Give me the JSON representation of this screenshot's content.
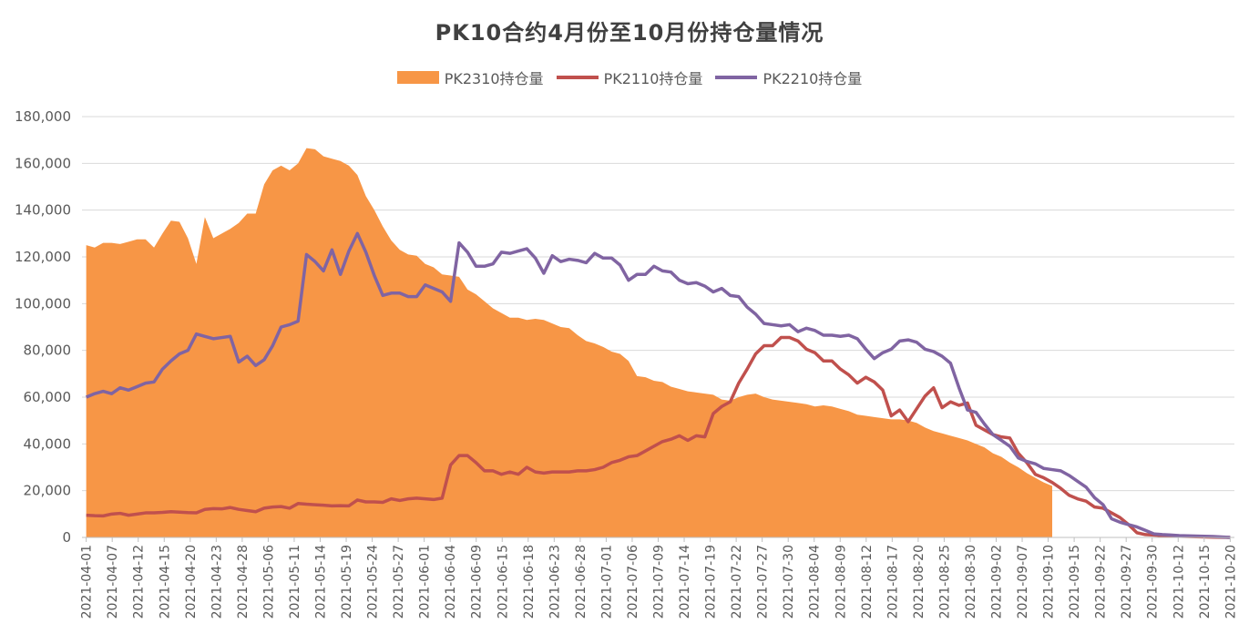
{
  "chart_data": {
    "type": "area",
    "title": "PK10合约4月份至10月份持仓量情况",
    "ylim": [
      0,
      180000
    ],
    "yticks": [
      0,
      20000,
      40000,
      60000,
      80000,
      100000,
      120000,
      140000,
      160000,
      180000
    ],
    "ytick_labels": [
      "0",
      "20,000",
      "40,000",
      "60,000",
      "80,000",
      "100,000",
      "120,000",
      "140,000",
      "160,000",
      "180,000"
    ],
    "grid": true,
    "legend_position": "top",
    "xtick_labels": [
      "2021-04-01",
      "2021-04-07",
      "2021-04-12",
      "2021-04-15",
      "2021-04-20",
      "2021-04-23",
      "2021-04-28",
      "2021-05-06",
      "2021-05-11",
      "2021-05-14",
      "2021-05-19",
      "2021-05-24",
      "2021-05-27",
      "2021-06-01",
      "2021-06-04",
      "2021-06-09",
      "2021-06-15",
      "2021-06-18",
      "2021-06-23",
      "2021-06-28",
      "2021-07-01",
      "2021-07-06",
      "2021-07-09",
      "2021-07-14",
      "2021-07-19",
      "2021-07-22",
      "2021-07-27",
      "2021-07-30",
      "2021-08-04",
      "2021-08-09",
      "2021-08-12",
      "2021-08-17",
      "2021-08-20",
      "2021-08-25",
      "2021-08-30",
      "2021-09-02",
      "2021-09-07",
      "2021-09-10",
      "2021-09-15",
      "2021-09-22",
      "2021-09-27",
      "2021-09-30",
      "2021-10-12",
      "2021-10-15",
      "2021-10-20"
    ],
    "n_points": 136,
    "series": [
      {
        "name": "PK2310持仓量",
        "kind": "area",
        "color": "#F79646",
        "values": [
          125000,
          124000,
          126000,
          126000,
          125500,
          126500,
          127500,
          127500,
          124000,
          130000,
          135500,
          135000,
          128000,
          117000,
          137000,
          128000,
          130000,
          132000,
          134500,
          138500,
          138500,
          151000,
          157000,
          159000,
          157000,
          160000,
          166500,
          166000,
          163000,
          162000,
          161000,
          159000,
          155000,
          146000,
          140000,
          133000,
          127000,
          123000,
          121000,
          120500,
          117000,
          115500,
          112500,
          112000,
          111500,
          106000,
          104000,
          101000,
          98000,
          96000,
          94000,
          94000,
          93000,
          93500,
          93000,
          91500,
          90000,
          89500,
          86500,
          84000,
          83000,
          81500,
          79500,
          78500,
          75500,
          69000,
          68500,
          67000,
          66500,
          64500,
          63500,
          62500,
          62000,
          61500,
          61000,
          59000,
          58500,
          60000,
          61000,
          61500,
          60000,
          59000,
          58500,
          58000,
          57500,
          57000,
          56000,
          56500,
          56000,
          55000,
          54000,
          52500,
          52000,
          51500,
          51000,
          50500,
          50500,
          50000,
          49000,
          47000,
          45500,
          44500,
          43500,
          42500,
          41500,
          40000,
          38500,
          36000,
          34500,
          32000,
          30000,
          27500,
          25500,
          23500,
          22000,
          null,
          null,
          null,
          null,
          null,
          null,
          null,
          null,
          null,
          null,
          null,
          null,
          null,
          null,
          null,
          null,
          null,
          null,
          null,
          null,
          null
        ]
      },
      {
        "name": "PK2110持仓量",
        "kind": "line",
        "color": "#C0504D",
        "values": [
          9500,
          9300,
          9200,
          10000,
          10300,
          9500,
          10000,
          10500,
          10500,
          10700,
          11000,
          10800,
          10600,
          10500,
          12000,
          12300,
          12200,
          12800,
          12000,
          11500,
          11000,
          12500,
          13000,
          13200,
          12500,
          14500,
          14200,
          14000,
          13800,
          13500,
          13600,
          13500,
          16000,
          15200,
          15200,
          15000,
          16500,
          15800,
          16500,
          16800,
          16500,
          16200,
          16800,
          31000,
          35000,
          35000,
          32000,
          28500,
          28500,
          27000,
          28000,
          27000,
          30000,
          28000,
          27500,
          28000,
          28000,
          28000,
          28500,
          28500,
          29000,
          30000,
          32000,
          33000,
          34500,
          35000,
          37000,
          39000,
          41000,
          42000,
          43500,
          41500,
          43500,
          43000,
          53000,
          56000,
          58000,
          66000,
          72000,
          78500,
          82000,
          82000,
          85500,
          85500,
          84000,
          80500,
          79000,
          75500,
          75500,
          72000,
          69500,
          66000,
          68500,
          66500,
          63000,
          52000,
          54500,
          49500,
          55000,
          60500,
          64000,
          55500,
          58000,
          56500,
          57500,
          48000,
          46000,
          44000,
          43000,
          42500,
          36000,
          32000,
          27000,
          25500,
          23500,
          21000,
          18000,
          16500,
          15500,
          13000,
          12500,
          10500,
          8500,
          5500,
          2000,
          1200,
          1000,
          800,
          600,
          500,
          400,
          300,
          200,
          100,
          50,
          0
        ]
      },
      {
        "name": "PK2210持仓量",
        "kind": "line",
        "color": "#8064A2",
        "values": [
          60000,
          61500,
          62500,
          61500,
          64000,
          63000,
          64500,
          66000,
          66500,
          72000,
          75500,
          78500,
          80000,
          87000,
          86000,
          85000,
          85500,
          86000,
          75000,
          77500,
          73500,
          76000,
          82000,
          90000,
          91000,
          92500,
          121000,
          118000,
          114000,
          123000,
          112500,
          122500,
          130000,
          122000,
          112000,
          103500,
          104500,
          104500,
          103000,
          103000,
          108000,
          106500,
          105000,
          101000,
          126000,
          122000,
          116000,
          116000,
          117000,
          122000,
          121500,
          122500,
          123500,
          119500,
          113000,
          120500,
          118000,
          119000,
          118500,
          117500,
          121500,
          119500,
          119500,
          116500,
          110000,
          112500,
          112500,
          116000,
          114000,
          113500,
          110000,
          108500,
          109000,
          107500,
          105000,
          106500,
          103500,
          103000,
          98500,
          95500,
          91500,
          91000,
          90500,
          91000,
          88000,
          89500,
          88500,
          86500,
          86500,
          86000,
          86500,
          85000,
          80500,
          76500,
          79000,
          80500,
          84000,
          84500,
          83500,
          80500,
          79500,
          77500,
          74500,
          64000,
          54500,
          53500,
          48500,
          44000,
          41500,
          39000,
          34000,
          32500,
          31500,
          29500,
          29000,
          28500,
          26500,
          24000,
          21500,
          17000,
          14000,
          8000,
          6500,
          5500,
          4500,
          3000,
          1500,
          1200,
          1000,
          800,
          700,
          600,
          500,
          400,
          200,
          0
        ]
      }
    ]
  }
}
